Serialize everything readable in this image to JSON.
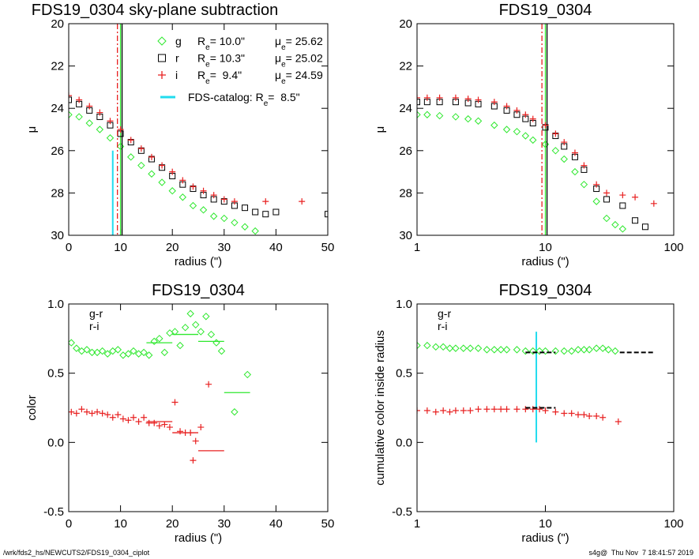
{
  "chart_data": [
    {
      "type": "scatter",
      "title": "FDS19_0304 sky-plane subtraction",
      "xlabel": "radius (\")",
      "ylabel": "μ",
      "xlog": false,
      "xlim": [
        0,
        50
      ],
      "ylim": [
        30,
        20
      ],
      "xticks": [
        0,
        10,
        20,
        30,
        40,
        50
      ],
      "yticks": [
        20,
        22,
        24,
        26,
        28,
        30
      ],
      "legend": true,
      "series": [
        {
          "name": "g",
          "marker": "diamond",
          "color": "#2ee82e",
          "re": 10.0,
          "re_label": "Re= 10.0\"",
          "mue_label": "μe= 25.62",
          "dash": false,
          "x": [
            0,
            2,
            4,
            6,
            8,
            10,
            12,
            14,
            16,
            18,
            20,
            22,
            24,
            26,
            28,
            30,
            32,
            34,
            36
          ],
          "values": [
            24.3,
            24.4,
            24.7,
            25.0,
            25.4,
            25.8,
            26.3,
            26.7,
            27.1,
            27.5,
            27.9,
            28.2,
            28.6,
            28.8,
            29.1,
            29.2,
            29.4,
            29.6,
            29.8
          ]
        },
        {
          "name": "r",
          "marker": "square",
          "color": "#000000",
          "re": 10.3,
          "re_label": "Re= 10.3\"",
          "mue_label": "μe= 25.02",
          "dash": false,
          "x": [
            0,
            2,
            4,
            6,
            8,
            10,
            12,
            14,
            16,
            18,
            20,
            22,
            24,
            26,
            28,
            30,
            32,
            34,
            36,
            38,
            40,
            50
          ],
          "values": [
            23.6,
            23.8,
            24.1,
            24.4,
            24.8,
            25.2,
            25.6,
            26.0,
            26.4,
            26.8,
            27.2,
            27.6,
            27.8,
            28.1,
            28.3,
            28.4,
            28.6,
            28.7,
            28.9,
            29.0,
            28.9,
            29.0
          ]
        },
        {
          "name": "i",
          "marker": "plus",
          "color": "#e82020",
          "re": 9.4,
          "re_label": "Re=  9.4\"",
          "mue_label": "μe= 24.59",
          "dash": true,
          "x": [
            0,
            2,
            4,
            6,
            8,
            10,
            12,
            14,
            16,
            18,
            20,
            22,
            24,
            26,
            28,
            30,
            32,
            38,
            45
          ],
          "values": [
            23.4,
            23.6,
            23.9,
            24.2,
            24.6,
            25.0,
            25.5,
            25.9,
            26.3,
            26.7,
            27.0,
            27.4,
            27.7,
            27.9,
            28.1,
            28.3,
            28.4,
            28.4,
            28.4
          ]
        }
      ],
      "catalog": {
        "name": "FDS-catalog: Re=  8.5\"",
        "color": "#22dcee",
        "x": 8.5,
        "y": [
          26,
          30
        ]
      }
    },
    {
      "type": "scatter",
      "title": "FDS19_0304",
      "xlabel": "radius (\")",
      "ylabel": "μ",
      "xlog": true,
      "xlim": [
        1,
        100
      ],
      "ylim": [
        30,
        20
      ],
      "xticks": [
        1,
        10,
        100
      ],
      "yticks": [
        20,
        22,
        24,
        26,
        28,
        30
      ],
      "legend": false,
      "series": [
        {
          "marker": "diamond",
          "color": "#2ee82e",
          "re": 10.0,
          "dash": false,
          "x": [
            1,
            1.2,
            1.5,
            2,
            2.5,
            3,
            4,
            5,
            6,
            7,
            8,
            10,
            12,
            14,
            17,
            20,
            25,
            30,
            35,
            40
          ],
          "values": [
            24.3,
            24.3,
            24.35,
            24.4,
            24.5,
            24.6,
            24.8,
            25.0,
            25.1,
            25.3,
            25.5,
            25.7,
            26.0,
            26.4,
            27.0,
            27.6,
            28.4,
            29.2,
            29.5,
            29.7
          ]
        },
        {
          "marker": "square",
          "color": "#000000",
          "re": 10.3,
          "dash": false,
          "x": [
            1,
            1.2,
            1.5,
            2,
            2.5,
            3,
            4,
            5,
            6,
            7,
            8,
            10,
            12,
            14,
            17,
            20,
            25,
            30,
            40,
            50,
            60
          ],
          "values": [
            23.7,
            23.7,
            23.7,
            23.7,
            23.75,
            23.8,
            23.9,
            24.1,
            24.3,
            24.5,
            24.7,
            24.9,
            25.3,
            25.8,
            26.3,
            26.9,
            27.8,
            28.3,
            28.6,
            29.3,
            29.6
          ]
        },
        {
          "marker": "plus",
          "color": "#e82020",
          "re": 9.4,
          "dash": true,
          "x": [
            1,
            1.2,
            1.5,
            2,
            2.5,
            3,
            4,
            5,
            6,
            7,
            8,
            10,
            12,
            14,
            17,
            20,
            25,
            30,
            40,
            50,
            70
          ],
          "values": [
            23.5,
            23.5,
            23.5,
            23.5,
            23.55,
            23.6,
            23.7,
            23.9,
            24.1,
            24.3,
            24.5,
            24.8,
            25.2,
            25.6,
            26.1,
            26.7,
            27.6,
            28.0,
            28.1,
            28.2,
            28.5
          ]
        }
      ]
    },
    {
      "type": "scatter",
      "title": "FDS19_0304",
      "xlabel": "radius (\")",
      "ylabel": "color",
      "xlog": false,
      "xlim": [
        0,
        50
      ],
      "ylim": [
        -0.5,
        1
      ],
      "xticks": [
        0,
        10,
        20,
        30,
        40,
        50
      ],
      "yticks": [
        {
          "value": 1,
          "label": "1.0"
        },
        0.5,
        {
          "value": 0,
          "label": "0.0"
        },
        -0.5
      ],
      "legend": true,
      "series": [
        {
          "name": "g-r",
          "marker": "diamond",
          "color": "#2ee82e",
          "x": [
            0.5,
            1.5,
            2.5,
            3.5,
            4.5,
            5.5,
            6.5,
            7.5,
            8.5,
            9.5,
            10.5,
            11.5,
            12.5,
            13.5,
            14.5,
            15.5,
            16.5,
            17.5,
            18.5,
            19.5,
            20.5,
            21.5,
            22.5,
            23.5,
            24.5,
            25.5,
            26.5,
            27.5,
            28.5,
            29.5,
            32,
            34.5
          ],
          "values": [
            0.72,
            0.68,
            0.66,
            0.67,
            0.65,
            0.65,
            0.66,
            0.64,
            0.66,
            0.67,
            0.63,
            0.64,
            0.66,
            0.64,
            0.65,
            0.63,
            0.73,
            0.75,
            0.65,
            0.79,
            0.8,
            0.7,
            0.83,
            0.93,
            0.85,
            0.8,
            0.91,
            0.78,
            0.72,
            0.66,
            0.22,
            0.49
          ],
          "means": {
            "x0": [
              15,
              20,
              25,
              30
            ],
            "x1": [
              20,
              25,
              30,
              35
            ],
            "values": [
              0.72,
              0.78,
              0.73,
              0.36
            ]
          }
        },
        {
          "name": "r-i",
          "marker": "plus",
          "color": "#e82020",
          "x": [
            0.5,
            1.5,
            2.5,
            3.5,
            4.5,
            5.5,
            6.5,
            7.5,
            8.5,
            9.5,
            10.5,
            11.5,
            12.5,
            13.5,
            14.5,
            15.5,
            16.5,
            17.5,
            18.5,
            19.5,
            20.5,
            21.5,
            22.5,
            23.5,
            24,
            24.5,
            25.5,
            27
          ],
          "values": [
            0.22,
            0.21,
            0.24,
            0.22,
            0.21,
            0.22,
            0.21,
            0.2,
            0.18,
            0.2,
            0.17,
            0.16,
            0.18,
            0.15,
            0.18,
            0.14,
            0.14,
            0.12,
            0.13,
            0.11,
            0.29,
            0.08,
            0.07,
            0.07,
            -0.13,
            0.01,
            0.11,
            0.42
          ],
          "means": {
            "x0": [
              15,
              20,
              25
            ],
            "x1": [
              20,
              25,
              30
            ],
            "values": [
              0.15,
              0.07,
              -0.06
            ]
          }
        }
      ]
    },
    {
      "type": "scatter",
      "title": "FDS19_0304",
      "xlabel": "radius (\")",
      "ylabel": "cumulative color inside radius",
      "xlog": true,
      "xlim": [
        1,
        100
      ],
      "ylim": [
        -0.5,
        1
      ],
      "xticks": [
        1,
        10,
        100
      ],
      "yticks": [
        {
          "value": 1,
          "label": "1.0"
        },
        0.5,
        {
          "value": 0,
          "label": "0.0"
        },
        -0.5
      ],
      "legend": true,
      "series": [
        {
          "name": "g-r",
          "marker": "diamond",
          "color": "#2ee82e",
          "x": [
            1,
            1.2,
            1.4,
            1.6,
            1.8,
            2,
            2.3,
            2.6,
            3,
            3.5,
            4,
            4.5,
            5,
            6,
            7,
            8,
            9,
            10,
            12,
            14,
            16,
            18,
            20,
            22,
            25,
            28,
            31,
            35
          ],
          "values": [
            0.7,
            0.7,
            0.69,
            0.69,
            0.68,
            0.68,
            0.68,
            0.68,
            0.68,
            0.67,
            0.67,
            0.67,
            0.67,
            0.67,
            0.66,
            0.66,
            0.66,
            0.66,
            0.66,
            0.66,
            0.66,
            0.67,
            0.67,
            0.67,
            0.68,
            0.68,
            0.67,
            0.66
          ],
          "means": {
            "x0": [
              7,
              38
            ],
            "x1": [
              12,
              70
            ],
            "values": [
              0.65,
              0.65
            ],
            "color": "#000000",
            "dash": true
          }
        },
        {
          "name": "r-i",
          "marker": "plus",
          "color": "#e82020",
          "x": [
            1,
            1.2,
            1.4,
            1.6,
            1.8,
            2,
            2.3,
            2.6,
            3,
            3.5,
            4,
            4.5,
            5,
            6,
            7,
            8,
            9,
            10,
            12,
            14,
            16,
            18,
            20,
            22,
            25,
            28,
            37
          ],
          "values": [
            0.23,
            0.23,
            0.22,
            0.23,
            0.22,
            0.23,
            0.23,
            0.23,
            0.24,
            0.24,
            0.24,
            0.24,
            0.24,
            0.24,
            0.24,
            0.24,
            0.24,
            0.23,
            0.22,
            0.21,
            0.21,
            0.2,
            0.2,
            0.19,
            0.19,
            0.18,
            0.15
          ],
          "means": {
            "x0": [
              7
            ],
            "x1": [
              12
            ],
            "values": [
              0.25
            ],
            "color": "#000000",
            "dash": true
          }
        }
      ],
      "catalog": {
        "color": "#22dcee",
        "x": 8.5,
        "y": [
          0,
          0.8
        ]
      }
    }
  ],
  "footer": {
    "left": "/wrk/fds2_hs/NEWCUTS2/FDS19_0304_ciplot",
    "right": "s4g@  Thu Nov  7 18:41:57 2019"
  }
}
